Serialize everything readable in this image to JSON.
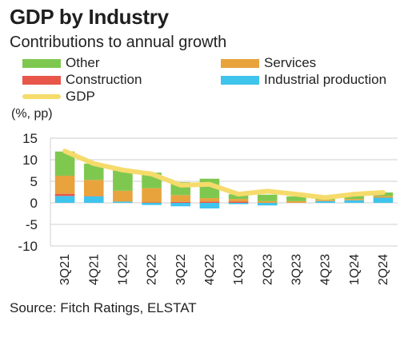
{
  "header": {
    "title": "GDP by Industry",
    "subtitle": "Contributions to annual growth"
  },
  "legend": {
    "items": [
      {
        "label": "Other",
        "color": "#7fc850",
        "kind": "box"
      },
      {
        "label": "Services",
        "color": "#e8a33d",
        "kind": "box"
      },
      {
        "label": "Construction",
        "color": "#e8574a",
        "kind": "box"
      },
      {
        "label": "Industrial production",
        "color": "#3fc4ec",
        "kind": "box"
      },
      {
        "label": "GDP",
        "color": "#f5db6b",
        "kind": "line"
      }
    ]
  },
  "unit_label": "(%, pp)",
  "source": "Source: Fitch Ratings, ELSTAT",
  "chart_data": {
    "type": "bar",
    "stacked": true,
    "categories": [
      "3Q21",
      "4Q21",
      "1Q22",
      "2Q22",
      "3Q22",
      "4Q22",
      "1Q23",
      "2Q23",
      "3Q23",
      "4Q23",
      "1Q24",
      "2Q24"
    ],
    "series": [
      {
        "name": "Industrial production",
        "color": "#3fc4ec",
        "values": [
          1.6,
          1.5,
          0.3,
          -0.5,
          -0.8,
          -1.3,
          -0.3,
          -0.6,
          0.0,
          0.4,
          0.6,
          1.2
        ]
      },
      {
        "name": "Construction",
        "color": "#e8574a",
        "values": [
          0.5,
          0.1,
          0.0,
          0.1,
          0.2,
          0.3,
          0.3,
          0.0,
          0.0,
          0.0,
          0.0,
          0.0
        ]
      },
      {
        "name": "Services",
        "color": "#e8a33d",
        "values": [
          4.2,
          3.7,
          2.5,
          3.3,
          1.6,
          0.8,
          0.6,
          0.4,
          0.4,
          0.3,
          0.3,
          0.4
        ]
      },
      {
        "name": "Other",
        "color": "#7fc850",
        "values": [
          5.6,
          3.8,
          4.9,
          3.6,
          3.0,
          4.5,
          1.1,
          1.5,
          1.1,
          0.6,
          1.3,
          0.8
        ]
      }
    ],
    "line": {
      "name": "GDP",
      "color": "#f5db6b",
      "values": [
        12.0,
        9.1,
        7.6,
        6.7,
        4.1,
        4.3,
        2.0,
        2.7,
        2.0,
        1.2,
        2.0,
        2.4
      ]
    },
    "yticks": [
      15,
      10,
      5,
      0,
      -5,
      -10
    ],
    "ylim": [
      -10,
      15
    ],
    "grid": true
  }
}
